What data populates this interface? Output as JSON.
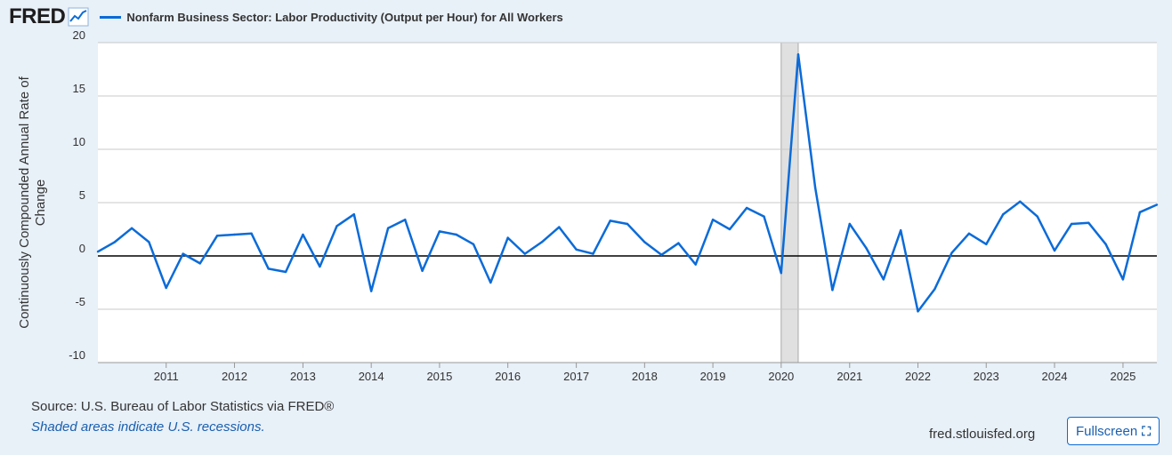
{
  "header": {
    "logo_text": "FRED",
    "legend_label": "Nonfarm Business Sector: Labor Productivity (Output per Hour) for All Workers"
  },
  "footer": {
    "source": "Source: U.S. Bureau of Labor Statistics via FRED®",
    "note": "Shaded areas indicate U.S. recessions.",
    "site": "fred.stlouisfed.org",
    "fullscreen_label": "Fullscreen"
  },
  "colors": {
    "series": "#0b6bd8",
    "background": "#e8f0f8",
    "plot": "#ffffff",
    "recession": "#e0e0e0"
  },
  "icons": {
    "logo_graph": "line-chart-icon",
    "fullscreen": "expand-icon"
  },
  "chart_data": {
    "type": "line",
    "title": "",
    "ylabel": "Continuously Compounded Annual Rate of Change",
    "xlabel": "",
    "ylim": [
      -10,
      20
    ],
    "xlim": [
      "2010-01-01",
      "2025-07-01"
    ],
    "yticks": [
      -10,
      -5,
      0,
      5,
      10,
      15,
      20
    ],
    "ytick_labels": [
      "-10",
      "-5",
      "0",
      "5",
      "10",
      "15",
      "20"
    ],
    "xticks": [
      "2011",
      "2012",
      "2013",
      "2014",
      "2015",
      "2016",
      "2017",
      "2018",
      "2019",
      "2020",
      "2021",
      "2022",
      "2023",
      "2024",
      "2025"
    ],
    "grid": "horizontal",
    "zero_line": true,
    "recessions": [
      {
        "start": "2020-01-01",
        "end": "2020-04-01"
      }
    ],
    "series": [
      {
        "name": "Nonfarm Business Sector: Labor Productivity (Output per Hour) for All Workers",
        "x": [
          "2010-01-01",
          "2010-04-01",
          "2010-07-01",
          "2010-10-01",
          "2011-01-01",
          "2011-04-01",
          "2011-07-01",
          "2011-10-01",
          "2012-01-01",
          "2012-04-01",
          "2012-07-01",
          "2012-10-01",
          "2013-01-01",
          "2013-04-01",
          "2013-07-01",
          "2013-10-01",
          "2014-01-01",
          "2014-04-01",
          "2014-07-01",
          "2014-10-01",
          "2015-01-01",
          "2015-04-01",
          "2015-07-01",
          "2015-10-01",
          "2016-01-01",
          "2016-04-01",
          "2016-07-01",
          "2016-10-01",
          "2017-01-01",
          "2017-04-01",
          "2017-07-01",
          "2017-10-01",
          "2018-01-01",
          "2018-04-01",
          "2018-07-01",
          "2018-10-01",
          "2019-01-01",
          "2019-04-01",
          "2019-07-01",
          "2019-10-01",
          "2020-01-01",
          "2020-04-01",
          "2020-07-01",
          "2020-10-01",
          "2021-01-01",
          "2021-04-01",
          "2021-07-01",
          "2021-10-01",
          "2022-01-01",
          "2022-04-01",
          "2022-07-01",
          "2022-10-01",
          "2023-01-01",
          "2023-04-01",
          "2023-07-01",
          "2023-10-01",
          "2024-01-01",
          "2024-04-01",
          "2024-07-01",
          "2024-10-01",
          "2025-01-01",
          "2025-04-01",
          "2025-07-01"
        ],
        "values": [
          0.4,
          1.3,
          2.6,
          1.3,
          -3.0,
          0.2,
          -0.7,
          1.9,
          2.0,
          2.1,
          -1.2,
          -1.5,
          2.0,
          -1.0,
          2.8,
          3.9,
          -3.3,
          2.6,
          3.4,
          -1.4,
          2.3,
          2.0,
          1.1,
          -2.5,
          1.7,
          0.2,
          1.3,
          2.7,
          0.6,
          0.2,
          3.3,
          3.0,
          1.3,
          0.1,
          1.2,
          -0.8,
          3.4,
          2.5,
          4.5,
          3.7,
          -1.6,
          18.9,
          6.4,
          -3.2,
          3.0,
          0.7,
          -2.2,
          2.4,
          -5.2,
          -3.1,
          0.3,
          2.1,
          1.1,
          3.9,
          5.1,
          3.7,
          0.5,
          3.0,
          3.1,
          1.1,
          -2.2,
          4.1,
          4.8
        ]
      }
    ]
  }
}
